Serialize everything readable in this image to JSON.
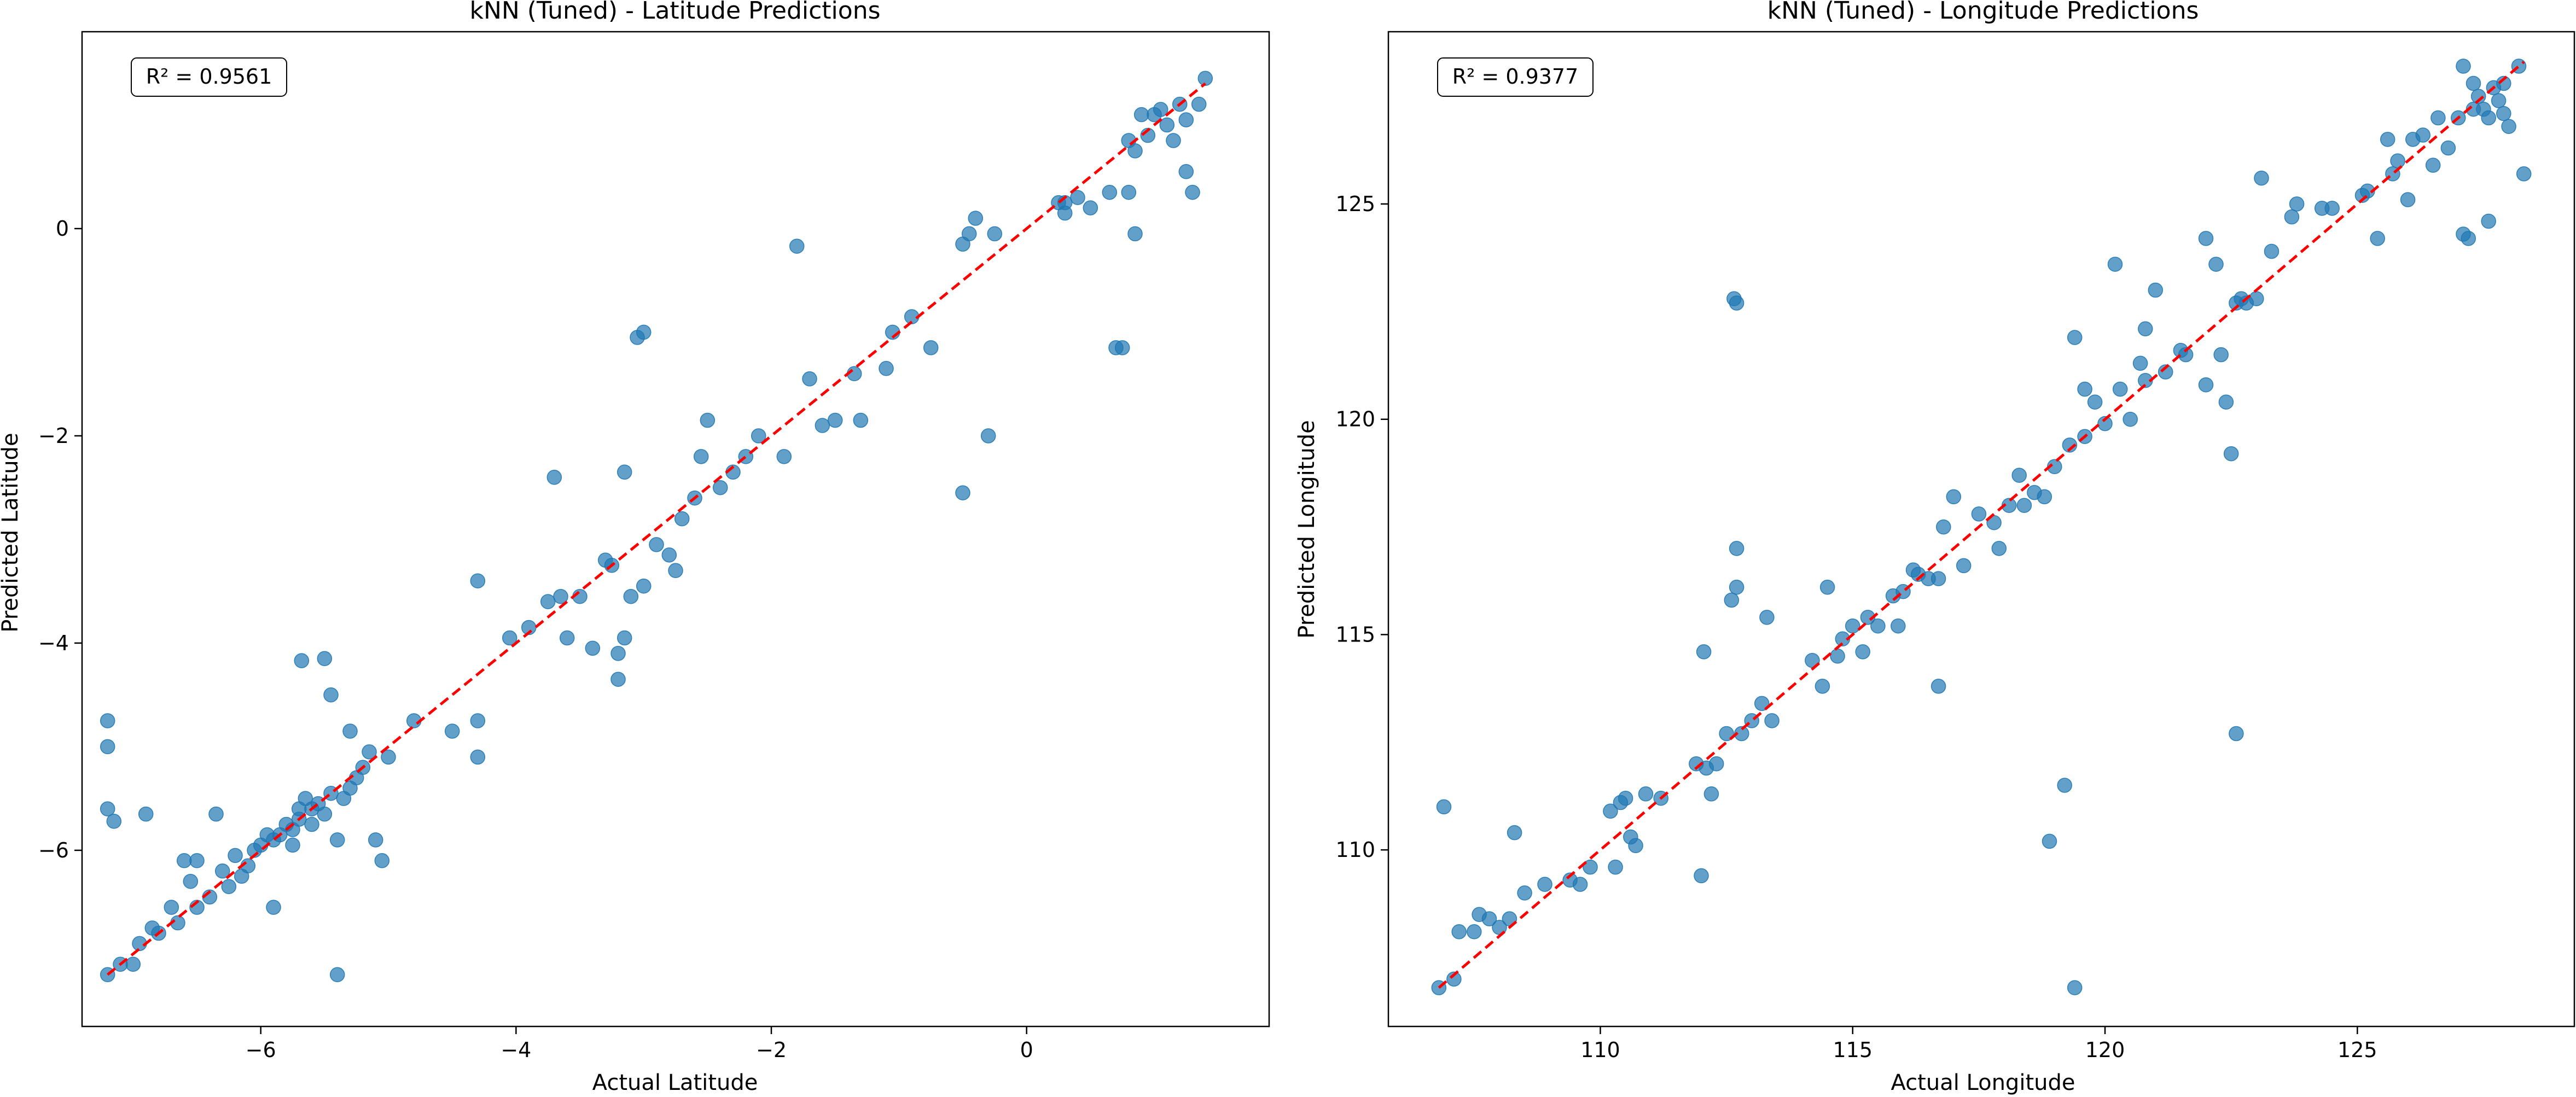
{
  "chart_data": [
    {
      "type": "scatter",
      "title": "kNN (Tuned) - Latitude Predictions",
      "xlabel": "Actual Latitude",
      "ylabel": "Predicted Latitude",
      "xlim": [
        -7.4,
        1.9
      ],
      "ylim": [
        -7.7,
        1.9
      ],
      "xticks": [
        -6,
        -4,
        -2,
        0
      ],
      "yticks": [
        -6,
        -4,
        -2,
        0
      ],
      "grid": false,
      "annotation": "R² = 0.9561",
      "point_color": "#1f77b4",
      "ideal_line_color": "#ff0000",
      "ideal_line": [
        [
          -7.2,
          -7.2
        ],
        [
          1.4,
          1.4
        ]
      ],
      "points": [
        [
          -7.2,
          -7.2
        ],
        [
          -7.2,
          -4.75
        ],
        [
          -7.2,
          -5.0
        ],
        [
          -7.2,
          -5.6
        ],
        [
          -7.15,
          -5.72
        ],
        [
          -7.1,
          -7.1
        ],
        [
          -7.0,
          -7.1
        ],
        [
          -6.95,
          -6.9
        ],
        [
          -6.9,
          -5.65
        ],
        [
          -6.85,
          -6.75
        ],
        [
          -6.8,
          -6.8
        ],
        [
          -6.7,
          -6.55
        ],
        [
          -6.65,
          -6.7
        ],
        [
          -6.6,
          -6.1
        ],
        [
          -6.55,
          -6.3
        ],
        [
          -6.5,
          -6.55
        ],
        [
          -6.5,
          -6.1
        ],
        [
          -6.4,
          -6.45
        ],
        [
          -6.35,
          -5.65
        ],
        [
          -6.3,
          -6.2
        ],
        [
          -6.25,
          -6.35
        ],
        [
          -6.2,
          -6.05
        ],
        [
          -6.15,
          -6.25
        ],
        [
          -6.1,
          -6.15
        ],
        [
          -6.05,
          -6.0
        ],
        [
          -6.0,
          -5.95
        ],
        [
          -5.95,
          -5.85
        ],
        [
          -5.9,
          -6.55
        ],
        [
          -5.9,
          -5.9
        ],
        [
          -5.85,
          -5.85
        ],
        [
          -5.8,
          -5.75
        ],
        [
          -5.75,
          -5.8
        ],
        [
          -5.7,
          -5.7
        ],
        [
          -5.7,
          -5.6
        ],
        [
          -5.68,
          -4.17
        ],
        [
          -5.65,
          -5.5
        ],
        [
          -5.6,
          -5.6
        ],
        [
          -5.6,
          -5.75
        ],
        [
          -5.55,
          -5.55
        ],
        [
          -5.5,
          -5.65
        ],
        [
          -5.5,
          -4.15
        ],
        [
          -5.45,
          -4.5
        ],
        [
          -5.45,
          -5.45
        ],
        [
          -5.4,
          -5.9
        ],
        [
          -5.4,
          -7.2
        ],
        [
          -5.35,
          -5.5
        ],
        [
          -5.3,
          -4.85
        ],
        [
          -5.3,
          -5.4
        ],
        [
          -5.25,
          -5.3
        ],
        [
          -5.2,
          -5.2
        ],
        [
          -5.15,
          -5.05
        ],
        [
          -5.1,
          -5.9
        ],
        [
          -5.05,
          -6.1
        ],
        [
          -5.0,
          -5.1
        ],
        [
          -4.8,
          -4.75
        ],
        [
          -4.5,
          -4.85
        ],
        [
          -4.3,
          -4.75
        ],
        [
          -4.3,
          -5.1
        ],
        [
          -4.3,
          -3.4
        ],
        [
          -4.05,
          -3.95
        ],
        [
          -3.9,
          -3.85
        ],
        [
          -3.75,
          -3.6
        ],
        [
          -3.7,
          -2.4
        ],
        [
          -3.65,
          -3.55
        ],
        [
          -3.6,
          -3.95
        ],
        [
          -3.5,
          -3.55
        ],
        [
          -3.4,
          -4.05
        ],
        [
          -3.3,
          -3.2
        ],
        [
          -3.25,
          -3.25
        ],
        [
          -3.2,
          -4.35
        ],
        [
          -3.2,
          -4.1
        ],
        [
          -3.15,
          -3.95
        ],
        [
          -3.15,
          -2.35
        ],
        [
          -3.1,
          -3.55
        ],
        [
          -3.05,
          -1.05
        ],
        [
          -3.0,
          -3.45
        ],
        [
          -3.0,
          -1.0
        ],
        [
          -2.9,
          -3.05
        ],
        [
          -2.8,
          -3.15
        ],
        [
          -2.75,
          -3.3
        ],
        [
          -2.7,
          -2.8
        ],
        [
          -2.6,
          -2.6
        ],
        [
          -2.55,
          -2.2
        ],
        [
          -2.5,
          -1.85
        ],
        [
          -2.4,
          -2.5
        ],
        [
          -2.3,
          -2.35
        ],
        [
          -2.2,
          -2.2
        ],
        [
          -2.1,
          -2.0
        ],
        [
          -1.9,
          -2.2
        ],
        [
          -1.8,
          -0.17
        ],
        [
          -1.7,
          -1.45
        ],
        [
          -1.6,
          -1.9
        ],
        [
          -1.5,
          -1.85
        ],
        [
          -1.35,
          -1.4
        ],
        [
          -1.3,
          -1.85
        ],
        [
          -1.1,
          -1.35
        ],
        [
          -1.05,
          -1.0
        ],
        [
          -0.9,
          -0.85
        ],
        [
          -0.75,
          -1.15
        ],
        [
          -0.5,
          -2.55
        ],
        [
          -0.5,
          -0.15
        ],
        [
          -0.45,
          -0.05
        ],
        [
          -0.4,
          0.1
        ],
        [
          -0.3,
          -2.0
        ],
        [
          -0.25,
          -0.05
        ],
        [
          0.25,
          0.25
        ],
        [
          0.3,
          0.15
        ],
        [
          0.4,
          0.3
        ],
        [
          0.5,
          0.2
        ],
        [
          0.65,
          0.35
        ],
        [
          0.7,
          -1.15
        ],
        [
          0.75,
          -1.15
        ],
        [
          0.8,
          0.85
        ],
        [
          0.8,
          0.35
        ],
        [
          0.85,
          -0.05
        ],
        [
          0.85,
          0.75
        ],
        [
          0.9,
          1.1
        ],
        [
          0.95,
          0.9
        ],
        [
          1.0,
          1.1
        ],
        [
          1.05,
          1.15
        ],
        [
          1.1,
          1.0
        ],
        [
          1.15,
          0.85
        ],
        [
          1.2,
          1.2
        ],
        [
          1.25,
          1.05
        ],
        [
          1.25,
          0.55
        ],
        [
          1.3,
          0.35
        ],
        [
          1.35,
          1.2
        ],
        [
          1.4,
          1.45
        ],
        [
          0.3,
          0.25
        ],
        [
          -5.75,
          -5.95
        ]
      ]
    },
    {
      "type": "scatter",
      "title": "kNN (Tuned) - Longitude Predictions",
      "xlabel": "Actual Longitude",
      "ylabel": "Predicted Longitude",
      "xlim": [
        105.8,
        129.3
      ],
      "ylim": [
        105.9,
        129.0
      ],
      "xticks": [
        110,
        115,
        120,
        125
      ],
      "yticks": [
        110,
        115,
        120,
        125
      ],
      "grid": false,
      "annotation": "R² = 0.9377",
      "point_color": "#1f77b4",
      "ideal_line_color": "#ff0000",
      "ideal_line": [
        [
          106.8,
          106.8
        ],
        [
          128.3,
          128.3
        ]
      ],
      "points": [
        [
          106.8,
          106.8
        ],
        [
          106.9,
          111.0
        ],
        [
          107.1,
          107.0
        ],
        [
          107.2,
          108.1
        ],
        [
          107.5,
          108.1
        ],
        [
          107.6,
          108.5
        ],
        [
          107.8,
          108.4
        ],
        [
          108.0,
          108.2
        ],
        [
          108.2,
          108.4
        ],
        [
          108.3,
          110.4
        ],
        [
          108.5,
          109.0
        ],
        [
          108.9,
          109.2
        ],
        [
          109.4,
          109.3
        ],
        [
          109.6,
          109.2
        ],
        [
          109.8,
          109.6
        ],
        [
          110.2,
          110.9
        ],
        [
          110.3,
          109.6
        ],
        [
          110.4,
          111.1
        ],
        [
          110.5,
          111.2
        ],
        [
          110.6,
          110.3
        ],
        [
          110.7,
          110.1
        ],
        [
          110.9,
          111.3
        ],
        [
          111.2,
          111.2
        ],
        [
          111.9,
          112.0
        ],
        [
          112.0,
          109.4
        ],
        [
          112.05,
          114.6
        ],
        [
          112.1,
          111.9
        ],
        [
          112.2,
          111.3
        ],
        [
          112.3,
          112.0
        ],
        [
          112.5,
          112.7
        ],
        [
          112.6,
          115.8
        ],
        [
          112.65,
          122.8
        ],
        [
          112.7,
          122.7
        ],
        [
          112.7,
          117.0
        ],
        [
          112.7,
          116.1
        ],
        [
          112.8,
          112.7
        ],
        [
          113.0,
          113.0
        ],
        [
          113.2,
          113.4
        ],
        [
          113.3,
          115.4
        ],
        [
          113.4,
          113.0
        ],
        [
          114.2,
          114.4
        ],
        [
          114.4,
          113.8
        ],
        [
          114.5,
          116.1
        ],
        [
          114.7,
          114.5
        ],
        [
          114.8,
          114.9
        ],
        [
          115.0,
          115.2
        ],
        [
          115.2,
          114.6
        ],
        [
          115.3,
          115.4
        ],
        [
          115.5,
          115.2
        ],
        [
          115.8,
          115.9
        ],
        [
          115.9,
          115.2
        ],
        [
          116.0,
          116.0
        ],
        [
          116.2,
          116.5
        ],
        [
          116.3,
          116.4
        ],
        [
          116.5,
          116.3
        ],
        [
          116.7,
          116.3
        ],
        [
          116.7,
          113.8
        ],
        [
          116.8,
          117.5
        ],
        [
          117.0,
          118.2
        ],
        [
          117.2,
          116.6
        ],
        [
          117.5,
          117.8
        ],
        [
          117.8,
          117.6
        ],
        [
          117.9,
          117.0
        ],
        [
          118.1,
          118.0
        ],
        [
          118.3,
          118.7
        ],
        [
          118.4,
          118.0
        ],
        [
          118.6,
          118.3
        ],
        [
          118.8,
          118.2
        ],
        [
          118.9,
          110.2
        ],
        [
          119.0,
          118.9
        ],
        [
          119.2,
          111.5
        ],
        [
          119.3,
          119.4
        ],
        [
          119.4,
          106.8
        ],
        [
          119.4,
          121.9
        ],
        [
          119.6,
          119.6
        ],
        [
          119.6,
          120.7
        ],
        [
          119.8,
          120.4
        ],
        [
          120.0,
          119.9
        ],
        [
          120.2,
          123.6
        ],
        [
          120.3,
          120.7
        ],
        [
          120.5,
          120.0
        ],
        [
          120.7,
          121.3
        ],
        [
          120.8,
          122.1
        ],
        [
          120.8,
          120.9
        ],
        [
          121.0,
          123.0
        ],
        [
          121.2,
          121.1
        ],
        [
          121.5,
          121.6
        ],
        [
          121.6,
          121.5
        ],
        [
          122.0,
          124.2
        ],
        [
          122.0,
          120.8
        ],
        [
          122.2,
          123.6
        ],
        [
          122.3,
          121.5
        ],
        [
          122.4,
          120.4
        ],
        [
          122.5,
          119.2
        ],
        [
          122.6,
          112.7
        ],
        [
          122.6,
          122.7
        ],
        [
          122.7,
          122.8
        ],
        [
          122.8,
          122.7
        ],
        [
          123.0,
          122.8
        ],
        [
          123.1,
          125.6
        ],
        [
          123.3,
          123.9
        ],
        [
          123.7,
          124.7
        ],
        [
          123.8,
          125.0
        ],
        [
          124.3,
          124.9
        ],
        [
          124.5,
          124.9
        ],
        [
          125.1,
          125.2
        ],
        [
          125.2,
          125.3
        ],
        [
          125.4,
          124.2
        ],
        [
          125.6,
          126.5
        ],
        [
          125.7,
          125.7
        ],
        [
          125.8,
          126.0
        ],
        [
          126.0,
          125.1
        ],
        [
          126.1,
          126.5
        ],
        [
          126.3,
          126.6
        ],
        [
          126.5,
          125.9
        ],
        [
          126.6,
          127.0
        ],
        [
          126.8,
          126.3
        ],
        [
          127.0,
          127.0
        ],
        [
          127.1,
          124.3
        ],
        [
          127.2,
          124.2
        ],
        [
          127.3,
          127.2
        ],
        [
          127.4,
          127.5
        ],
        [
          127.5,
          127.2
        ],
        [
          127.6,
          124.6
        ],
        [
          127.7,
          127.7
        ],
        [
          127.8,
          127.4
        ],
        [
          127.9,
          127.8
        ],
        [
          128.0,
          126.8
        ],
        [
          128.2,
          128.2
        ],
        [
          128.3,
          125.7
        ],
        [
          127.1,
          128.2
        ],
        [
          127.3,
          127.8
        ],
        [
          127.6,
          127.0
        ],
        [
          127.9,
          127.1
        ]
      ]
    }
  ]
}
